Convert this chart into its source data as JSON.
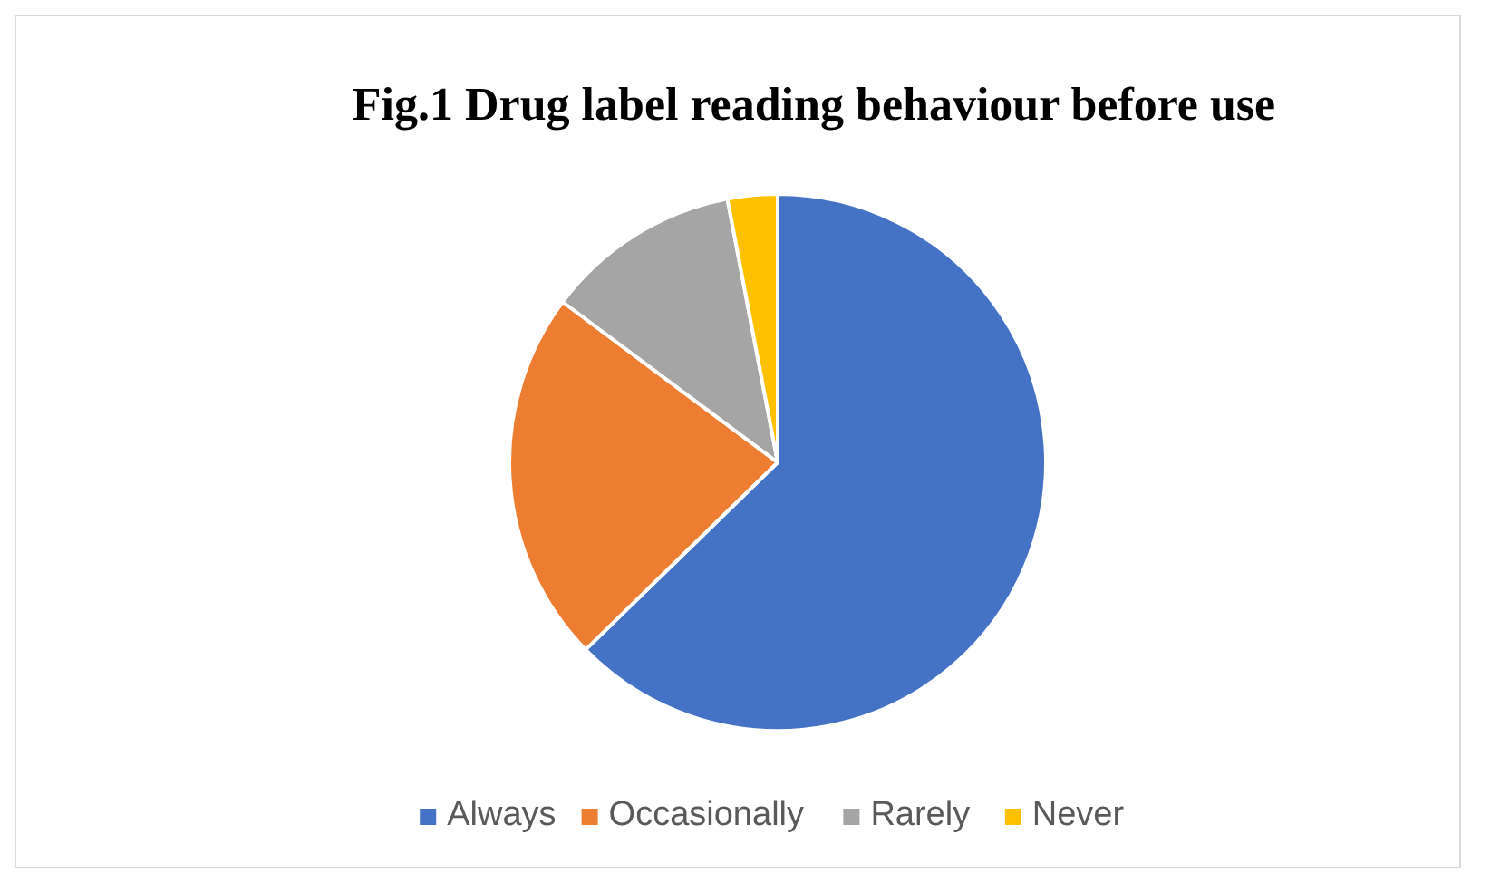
{
  "chart_data": {
    "type": "pie",
    "title": "Fig.1 Drug label reading behaviour before use",
    "categories": [
      "Always",
      "Occasionally",
      "Rarely",
      "Never"
    ],
    "values": [
      62.7,
      22.5,
      11.8,
      3.0
    ],
    "colors": [
      "#4472c4",
      "#ed7d31",
      "#a5a5a5",
      "#ffc000"
    ],
    "legend": "bottom"
  }
}
